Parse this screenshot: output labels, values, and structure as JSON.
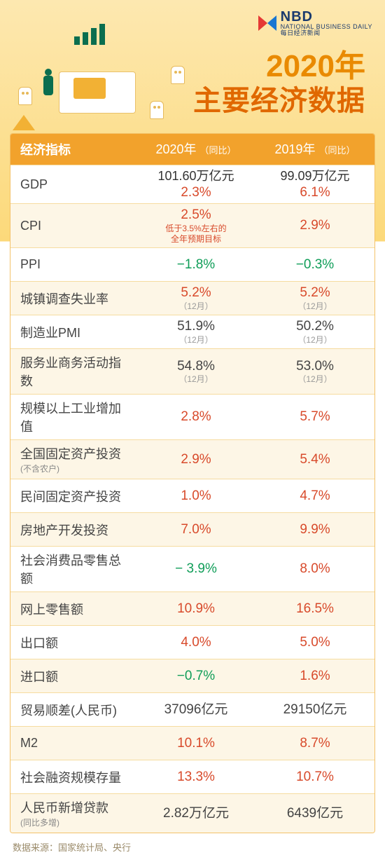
{
  "brand": {
    "name": "NBD",
    "sub": "每日经济新闻",
    "sub_en": "NATIONAL BUSINESS DAILY"
  },
  "title": {
    "line1": "2020年",
    "line2": "主要经济数据"
  },
  "columns": {
    "indicator": "经济指标",
    "y2020": "2020年",
    "y2020_yoy": "（同比）",
    "y2019": "2019年",
    "y2019_yoy": "（同比）"
  },
  "source": "数据来源：国家统计局、央行",
  "colors": {
    "header_bg": "#f2a22c",
    "stripe_bg": "#fdf6e6",
    "border": "#f3c26a",
    "red": "#d84a2b",
    "green": "#0f9d58",
    "title1": "#e98a00",
    "title2": "#e06800"
  },
  "rows": [
    {
      "label": "GDP",
      "v2020": {
        "top": "101.60万亿元",
        "main": "2.3%",
        "main_color": "red"
      },
      "v2019": {
        "top": "99.09万亿元",
        "main": "6.1%",
        "main_color": "red"
      }
    },
    {
      "label": "CPI",
      "v2020": {
        "main": "2.5%",
        "main_color": "red",
        "note": "低于3.5%左右的\n全年预期目标"
      },
      "v2019": {
        "main": "2.9%",
        "main_color": "red"
      }
    },
    {
      "label": "PPI",
      "v2020": {
        "main": "−1.8%",
        "main_color": "green"
      },
      "v2019": {
        "main": "−0.3%",
        "main_color": "green"
      }
    },
    {
      "label": "城镇调查失业率",
      "v2020": {
        "main": "5.2%",
        "main_color": "red",
        "month": "（12月）"
      },
      "v2019": {
        "main": "5.2%",
        "main_color": "red",
        "month": "（12月）"
      }
    },
    {
      "label": "制造业PMI",
      "v2020": {
        "main": "51.9%",
        "main_color": "black",
        "month": "（12月）"
      },
      "v2019": {
        "main": "50.2%",
        "main_color": "black",
        "month": "（12月）"
      }
    },
    {
      "label": "服务业商务活动指数",
      "v2020": {
        "main": "54.8%",
        "main_color": "black",
        "month": "（12月）"
      },
      "v2019": {
        "main": "53.0%",
        "main_color": "black",
        "month": "（12月）"
      }
    },
    {
      "label": "规模以上工业增加值",
      "v2020": {
        "main": "2.8%",
        "main_color": "red"
      },
      "v2019": {
        "main": "5.7%",
        "main_color": "red"
      }
    },
    {
      "label": "全国固定资产投资",
      "label_sub": "(不含农户)",
      "v2020": {
        "main": "2.9%",
        "main_color": "red"
      },
      "v2019": {
        "main": "5.4%",
        "main_color": "red"
      }
    },
    {
      "label": "民间固定资产投资",
      "v2020": {
        "main": "1.0%",
        "main_color": "red"
      },
      "v2019": {
        "main": "4.7%",
        "main_color": "red"
      }
    },
    {
      "label": "房地产开发投资",
      "v2020": {
        "main": "7.0%",
        "main_color": "red"
      },
      "v2019": {
        "main": "9.9%",
        "main_color": "red"
      }
    },
    {
      "label": "社会消费品零售总额",
      "v2020": {
        "main": "− 3.9%",
        "main_color": "green"
      },
      "v2019": {
        "main": "8.0%",
        "main_color": "red"
      }
    },
    {
      "label": "网上零售额",
      "v2020": {
        "main": "10.9%",
        "main_color": "red"
      },
      "v2019": {
        "main": "16.5%",
        "main_color": "red"
      }
    },
    {
      "label": "出口额",
      "v2020": {
        "main": "4.0%",
        "main_color": "red"
      },
      "v2019": {
        "main": "5.0%",
        "main_color": "red"
      }
    },
    {
      "label": "进口额",
      "v2020": {
        "main": "−0.7%",
        "main_color": "green"
      },
      "v2019": {
        "main": "1.6%",
        "main_color": "red"
      }
    },
    {
      "label": "贸易顺差(人民币)",
      "v2020": {
        "main": "37096亿元",
        "main_color": "black"
      },
      "v2019": {
        "main": "29150亿元",
        "main_color": "black"
      }
    },
    {
      "label": "M2",
      "v2020": {
        "main": "10.1%",
        "main_color": "red"
      },
      "v2019": {
        "main": "8.7%",
        "main_color": "red"
      }
    },
    {
      "label": "社会融资规模存量",
      "v2020": {
        "main": "13.3%",
        "main_color": "red"
      },
      "v2019": {
        "main": "10.7%",
        "main_color": "red"
      }
    },
    {
      "label": "人民币新增贷款",
      "label_sub": "(同比多增)",
      "v2020": {
        "main": "2.82万亿元",
        "main_color": "black"
      },
      "v2019": {
        "main": "6439亿元",
        "main_color": "black"
      }
    }
  ]
}
